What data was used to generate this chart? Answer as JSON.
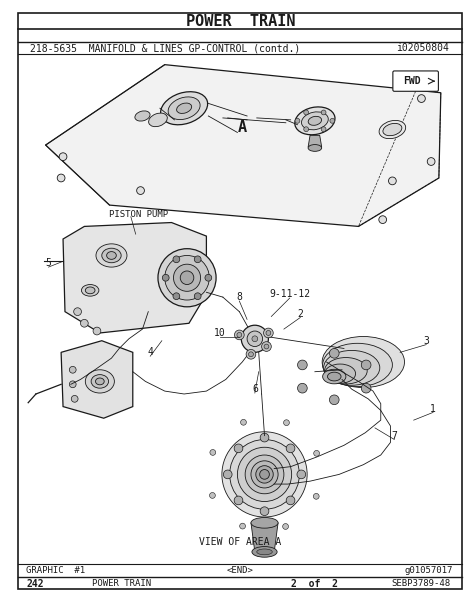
{
  "title": "POWER  TRAIN",
  "subtitle": "218-5635  MANIFOLD & LINES GP-CONTROL (contd.)",
  "doc_number": "i02050804",
  "footer_left": "GRAPHIC  #1",
  "footer_center": "<END>",
  "footer_ref": "g01057017",
  "page_left": "242",
  "page_center": "POWER TRAIN",
  "page_right": "2  of  2",
  "page_ref": "SEBP3789-48",
  "fwd_label": "FWD",
  "area_label": "A",
  "pump_label": "PISTON PUMP",
  "view_label": "VIEW OF AREA A",
  "bg_color": "#ffffff",
  "line_color": "#1a1a1a",
  "title_fontsize": 11,
  "subtitle_fontsize": 7,
  "footer_fontsize": 6.5,
  "label_fontsize": 7
}
